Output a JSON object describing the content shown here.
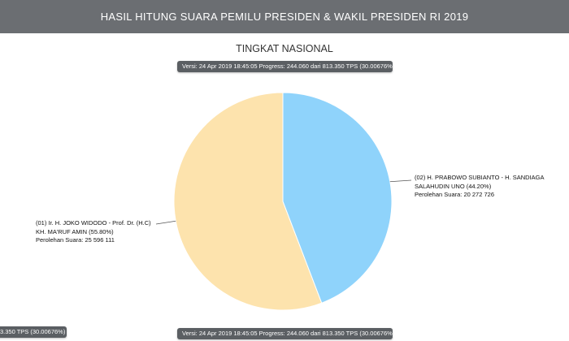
{
  "header": {
    "title": "HASIL HITUNG SUARA PEMILU PRESIDEN & WAKIL PRESIDEN RI 2019"
  },
  "subtitle": "TINGKAT NASIONAL",
  "badges": {
    "top": "Versi: 24 Apr 2019 18:45:05 Progress: 244.060 dari 813.350 TPS (30.00676%)",
    "bottom": "Versi: 24 Apr 2019 18:45:05 Progress: 244.060 dari 813.350 TPS (30.00676%)",
    "left": "3.350 TPS (30.00676%)"
  },
  "colors": {
    "slice_01": "#fde3ad",
    "slice_02": "#8fd3fb",
    "header_bg": "#6b6e72",
    "badge_bg": "#5b5f63"
  },
  "chart_data": {
    "type": "pie",
    "slices": [
      {
        "id": "02",
        "label_line1": "(02) H. PRABOWO SUBIANTO - H. SANDIAGA",
        "label_line2": "SALAHUDIN UNO (44.20%)",
        "votes_text": "Perolehan Suara: 20 272 726",
        "percent": 44.2,
        "votes": 20272726,
        "color": "#8fd3fb"
      },
      {
        "id": "01",
        "label_line1": "(01) Ir. H. JOKO WIDODO - Prof. Dr. (H.C)",
        "label_line2": "KH. MA'RUF AMIN (55.80%)",
        "votes_text": "Perolehan Suara: 25 596 111",
        "percent": 55.8,
        "votes": 25596111,
        "color": "#fde3ad"
      }
    ]
  }
}
